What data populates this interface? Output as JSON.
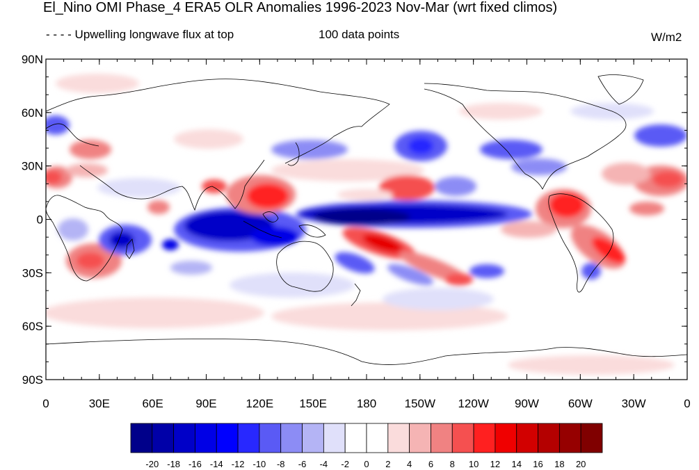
{
  "header": {
    "title": "El_Nino OMI Phase_4 ERA5 OLR Anomalies 1996-2023 Nov-Mar (wrt fixed climos)",
    "subtitle_left": "- - - - Upwelling longwave flux at top",
    "subtitle_center": "100 data points",
    "units": "W/m2"
  },
  "map": {
    "lat_ticks": [
      "90N",
      "60N",
      "30N",
      "0",
      "30S",
      "60S",
      "90S"
    ],
    "lon_ticks": [
      "0",
      "30E",
      "60E",
      "90E",
      "120E",
      "150E",
      "180",
      "150W",
      "120W",
      "90W",
      "60W",
      "30W",
      "0"
    ]
  },
  "colorbar": {
    "levels": [
      "-20",
      "-18",
      "-16",
      "-14",
      "-12",
      "-10",
      "-8",
      "-6",
      "-4",
      "-2",
      "0",
      "2",
      "4",
      "6",
      "8",
      "10",
      "12",
      "14",
      "16",
      "18",
      "20"
    ],
    "colors": [
      "#00008a",
      "#0000a8",
      "#0000c8",
      "#0000e6",
      "#0000ff",
      "#2828ff",
      "#5a5af5",
      "#8c8cf5",
      "#b4b4f5",
      "#e0e0fa",
      "#ffffff",
      "#ffffff",
      "#fadcdc",
      "#f5b4b4",
      "#f08282",
      "#f55050",
      "#ff2020",
      "#f00000",
      "#d20000",
      "#b40000",
      "#960000",
      "#800000"
    ]
  },
  "anomaly_colors": {
    "strong_negative": "#0000c8",
    "negative": "#5a5af5",
    "weak_negative": "#b4b4f5",
    "weak_positive": "#fadcdc",
    "positive": "#f08282",
    "strong_positive": "#e60000"
  }
}
